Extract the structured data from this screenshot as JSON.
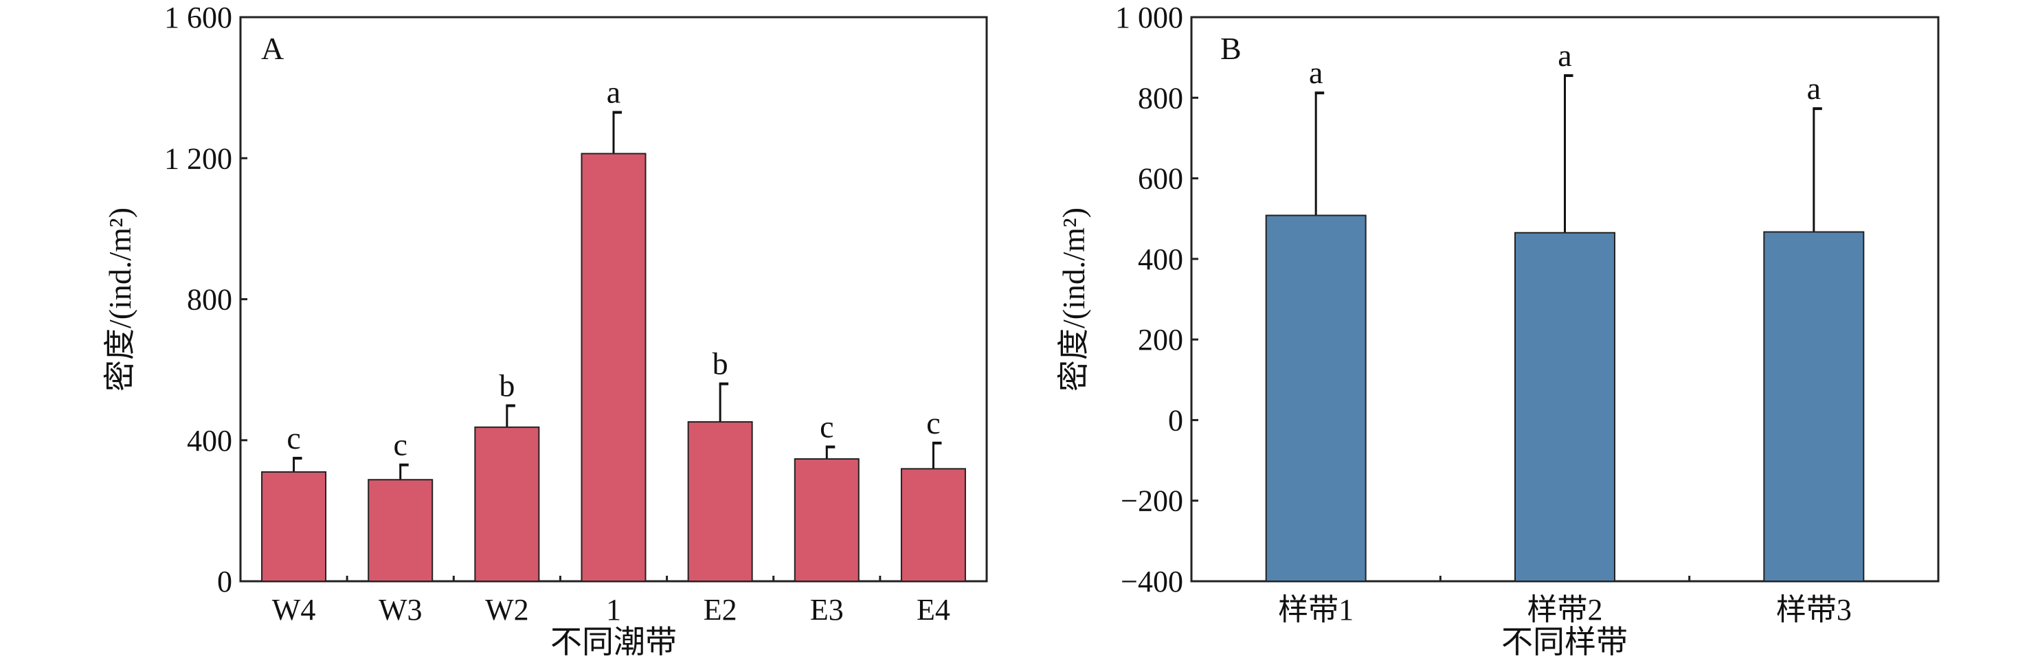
{
  "chart_data": [
    {
      "type": "bar",
      "panel_label": "A",
      "categories": [
        "W4",
        "W3",
        "W2",
        "1",
        "E2",
        "E3",
        "E4"
      ],
      "values": [
        310,
        288,
        437,
        1213,
        452,
        347,
        319
      ],
      "error_upper": [
        349,
        330,
        498,
        1330,
        560,
        381,
        392
      ],
      "significance": [
        "c",
        "c",
        "b",
        "a",
        "b",
        "c",
        "c"
      ],
      "xlabel": "不同潮带",
      "ylabel": "密度/(ind./m²)",
      "ylim": [
        0,
        1600
      ],
      "yticks": [
        0,
        400,
        800,
        1200,
        1600
      ],
      "ytick_labels": [
        "0",
        "400",
        "800",
        "1 200",
        "1 600"
      ],
      "color": "#d5596b",
      "grid": false
    },
    {
      "type": "bar",
      "panel_label": "B",
      "categories": [
        "样带1",
        "样带2",
        "样带3"
      ],
      "values": [
        508,
        465,
        467
      ],
      "error_upper": [
        812,
        855,
        773
      ],
      "significance": [
        "a",
        "a",
        "a"
      ],
      "xlabel": "不同样带",
      "ylabel": "密度/(ind./m²)",
      "ylim": [
        -400,
        1000
      ],
      "yticks": [
        -400,
        -200,
        0,
        200,
        400,
        600,
        800,
        1000
      ],
      "ytick_labels": [
        "−400",
        "−200",
        "0",
        "200",
        "400",
        "600",
        "800",
        "1 000"
      ],
      "color": "#5483ad",
      "grid": false
    }
  ]
}
